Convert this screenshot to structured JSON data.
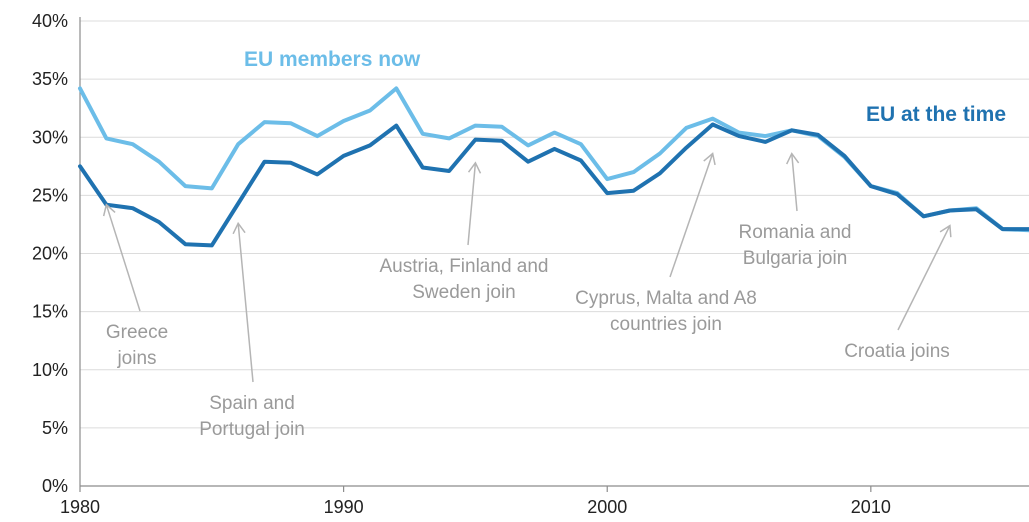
{
  "chart_data": {
    "type": "line",
    "title": "",
    "xlabel": "",
    "ylabel": "",
    "xlim": [
      1980,
      2016
    ],
    "ylim": [
      0,
      40
    ],
    "grid": "horizontal",
    "legend": "direct labels on lines",
    "x_ticks": [
      1980,
      1990,
      2000,
      2010
    ],
    "x_tick_labels": [
      "1980",
      "1990",
      "2000",
      "2010"
    ],
    "y_ticks": [
      0,
      5,
      10,
      15,
      20,
      25,
      30,
      35,
      40
    ],
    "y_tick_labels": [
      "0%",
      "5%",
      "10%",
      "15%",
      "20%",
      "25%",
      "30%",
      "35%",
      "40%"
    ],
    "x": [
      1980,
      1981,
      1982,
      1983,
      1984,
      1985,
      1986,
      1987,
      1988,
      1989,
      1990,
      1991,
      1992,
      1993,
      1994,
      1995,
      1996,
      1997,
      1998,
      1999,
      2000,
      2001,
      2002,
      2003,
      2004,
      2005,
      2006,
      2007,
      2008,
      2009,
      2010,
      2011,
      2012,
      2013,
      2014,
      2015,
      2016
    ],
    "series": [
      {
        "name": "EU members now",
        "color": "#6cbde8",
        "values": [
          34.2,
          29.9,
          29.4,
          27.9,
          25.8,
          25.6,
          29.4,
          31.3,
          31.2,
          30.1,
          31.4,
          32.3,
          34.2,
          30.3,
          29.9,
          31.0,
          30.9,
          29.3,
          30.4,
          29.4,
          26.4,
          27.0,
          28.6,
          30.8,
          31.6,
          30.4,
          30.1,
          30.6,
          30.1,
          28.3,
          25.8,
          25.2,
          23.2,
          23.7,
          23.9,
          22.1,
          22.0
        ]
      },
      {
        "name": "EU at the time",
        "color": "#1f72b0",
        "values": [
          27.5,
          24.2,
          23.9,
          22.7,
          20.8,
          20.7,
          24.3,
          27.9,
          27.8,
          26.8,
          28.4,
          29.3,
          31.0,
          27.4,
          27.1,
          29.8,
          29.7,
          27.9,
          29.0,
          28.0,
          25.2,
          25.4,
          26.9,
          29.1,
          31.1,
          30.1,
          29.6,
          30.6,
          30.2,
          28.4,
          25.8,
          25.1,
          23.2,
          23.7,
          23.8,
          22.1,
          22.1
        ]
      }
    ],
    "annotations": [
      {
        "lines": [
          "Greece",
          "joins"
        ],
        "year": 1981,
        "value": 24.2
      },
      {
        "lines": [
          "Spain and",
          "Portugal join"
        ],
        "year": 1986,
        "value": 22.6
      },
      {
        "lines": [
          "Austria, Finland and",
          "Sweden join"
        ],
        "year": 1995,
        "value": 27.8
      },
      {
        "lines": [
          "Cyprus, Malta and A8",
          "countries join"
        ],
        "year": 2004,
        "value": 28.6
      },
      {
        "lines": [
          "Romania and",
          "Bulgaria join"
        ],
        "year": 2007,
        "value": 28.6
      },
      {
        "lines": [
          "Croatia joins"
        ],
        "year": 2013,
        "value": 22.4
      }
    ]
  }
}
